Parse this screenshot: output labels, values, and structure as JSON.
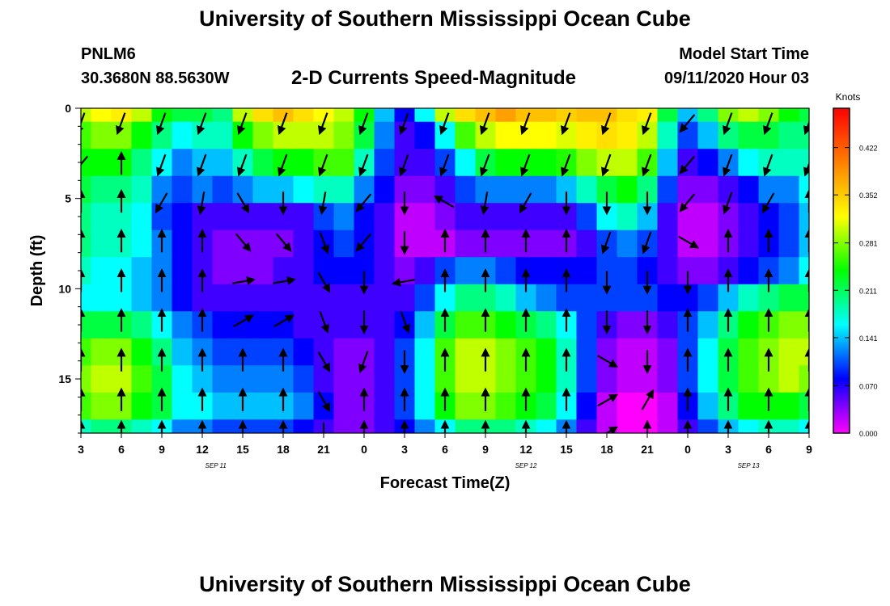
{
  "header": {
    "title": "University of Southern Mississippi Ocean Cube",
    "station_id": "PNLM6",
    "coordinates": "30.3680N 88.5630W",
    "subtitle": "2-D Currents Speed-Magnitude",
    "model_start_label": "Model Start Time",
    "model_start_value": "09/11/2020 Hour 03"
  },
  "footer": {
    "title": "University of Southern Mississippi Ocean Cube"
  },
  "chart_data": {
    "type": "heatmap",
    "xlabel": "Forecast Time(Z)",
    "ylabel": "Depth (ft)",
    "x_range_hours": [
      0,
      54
    ],
    "x_ticks": [
      {
        "hour": 0,
        "label": "3"
      },
      {
        "hour": 3,
        "label": "6"
      },
      {
        "hour": 6,
        "label": "9"
      },
      {
        "hour": 9,
        "label": "12"
      },
      {
        "hour": 12,
        "label": "15"
      },
      {
        "hour": 15,
        "label": "18"
      },
      {
        "hour": 18,
        "label": "21"
      },
      {
        "hour": 21,
        "label": "0"
      },
      {
        "hour": 24,
        "label": "3"
      },
      {
        "hour": 27,
        "label": "6"
      },
      {
        "hour": 30,
        "label": "9"
      },
      {
        "hour": 33,
        "label": "12"
      },
      {
        "hour": 36,
        "label": "15"
      },
      {
        "hour": 39,
        "label": "18"
      },
      {
        "hour": 42,
        "label": "21"
      },
      {
        "hour": 45,
        "label": "0"
      },
      {
        "hour": 48,
        "label": "3"
      },
      {
        "hour": 51,
        "label": "6"
      },
      {
        "hour": 54,
        "label": "9"
      }
    ],
    "date_labels": [
      {
        "hour": 10,
        "label": "SEP 11"
      },
      {
        "hour": 33,
        "label": "SEP 12"
      },
      {
        "hour": 49.5,
        "label": "SEP 13"
      }
    ],
    "y_range": [
      0,
      18
    ],
    "y_ticks": [
      0,
      5,
      10,
      15
    ],
    "y_inverted": true,
    "colorbar": {
      "title": "Knots",
      "range": [
        0,
        0.48
      ],
      "ticks": [
        0.0,
        0.07,
        0.141,
        0.211,
        0.281,
        0.352,
        0.422
      ],
      "tick_labels": [
        "0.000",
        "0.070",
        "0.141",
        "0.211",
        "0.281",
        "0.352",
        "0.422"
      ],
      "colors": [
        "#ff00ff",
        "#8000ff",
        "#0000ff",
        "#0080ff",
        "#00ffff",
        "#00ff80",
        "#00ff00",
        "#80ff00",
        "#ffff00",
        "#ffc000",
        "#ff8000",
        "#ff4000",
        "#ff0000"
      ]
    },
    "speed_grid": {
      "x_hours": [
        0,
        1.5,
        3,
        4.5,
        6,
        7.5,
        9,
        10.5,
        12,
        13.5,
        15,
        16.5,
        18,
        19.5,
        21,
        22.5,
        24,
        25.5,
        27,
        28.5,
        30,
        31.5,
        33,
        34.5,
        36,
        37.5,
        39,
        40.5,
        42,
        43.5,
        45,
        46.5,
        48,
        49.5,
        51,
        52.5,
        54
      ],
      "depths": [
        0,
        1.5,
        3,
        4.5,
        6,
        7.5,
        9,
        10.5,
        12,
        13.5,
        15,
        16.5,
        18
      ],
      "values_knots": [
        [
          0.3,
          0.32,
          0.33,
          0.3,
          0.24,
          0.22,
          0.22,
          0.2,
          0.3,
          0.34,
          0.36,
          0.34,
          0.32,
          0.3,
          0.24,
          0.14,
          0.08,
          0.16,
          0.3,
          0.34,
          0.36,
          0.38,
          0.36,
          0.36,
          0.35,
          0.36,
          0.36,
          0.34,
          0.33,
          0.22,
          0.14,
          0.2,
          0.28,
          0.3,
          0.28,
          0.24,
          0.22
        ],
        [
          0.26,
          0.28,
          0.28,
          0.24,
          0.2,
          0.16,
          0.18,
          0.18,
          0.24,
          0.28,
          0.3,
          0.3,
          0.3,
          0.28,
          0.22,
          0.12,
          0.06,
          0.08,
          0.16,
          0.26,
          0.3,
          0.32,
          0.32,
          0.32,
          0.31,
          0.33,
          0.34,
          0.33,
          0.3,
          0.18,
          0.1,
          0.14,
          0.2,
          0.22,
          0.22,
          0.2,
          0.2
        ],
        [
          0.24,
          0.24,
          0.24,
          0.2,
          0.16,
          0.12,
          0.14,
          0.14,
          0.18,
          0.22,
          0.24,
          0.24,
          0.26,
          0.26,
          0.18,
          0.1,
          0.06,
          0.06,
          0.1,
          0.16,
          0.22,
          0.24,
          0.24,
          0.24,
          0.25,
          0.28,
          0.3,
          0.3,
          0.26,
          0.14,
          0.06,
          0.08,
          0.12,
          0.16,
          0.18,
          0.18,
          0.18
        ],
        [
          0.22,
          0.2,
          0.2,
          0.18,
          0.12,
          0.1,
          0.12,
          0.1,
          0.12,
          0.14,
          0.14,
          0.16,
          0.18,
          0.18,
          0.12,
          0.08,
          0.04,
          0.04,
          0.06,
          0.1,
          0.12,
          0.12,
          0.12,
          0.12,
          0.14,
          0.18,
          0.22,
          0.24,
          0.2,
          0.1,
          0.04,
          0.04,
          0.06,
          0.08,
          0.12,
          0.12,
          0.16
        ],
        [
          0.2,
          0.18,
          0.18,
          0.16,
          0.1,
          0.08,
          0.06,
          0.06,
          0.06,
          0.06,
          0.06,
          0.06,
          0.1,
          0.12,
          0.08,
          0.06,
          0.02,
          0.02,
          0.04,
          0.06,
          0.06,
          0.06,
          0.06,
          0.06,
          0.06,
          0.1,
          0.16,
          0.18,
          0.14,
          0.06,
          0.02,
          0.02,
          0.04,
          0.06,
          0.08,
          0.1,
          0.14
        ],
        [
          0.2,
          0.18,
          0.18,
          0.16,
          0.12,
          0.08,
          0.06,
          0.04,
          0.04,
          0.04,
          0.04,
          0.06,
          0.08,
          0.1,
          0.08,
          0.06,
          0.02,
          0.02,
          0.02,
          0.04,
          0.04,
          0.04,
          0.04,
          0.04,
          0.04,
          0.06,
          0.1,
          0.12,
          0.1,
          0.06,
          0.02,
          0.02,
          0.04,
          0.06,
          0.08,
          0.1,
          0.14
        ],
        [
          0.18,
          0.16,
          0.16,
          0.14,
          0.12,
          0.08,
          0.06,
          0.04,
          0.04,
          0.04,
          0.06,
          0.06,
          0.08,
          0.08,
          0.08,
          0.06,
          0.04,
          0.06,
          0.1,
          0.12,
          0.12,
          0.1,
          0.08,
          0.08,
          0.08,
          0.08,
          0.1,
          0.1,
          0.08,
          0.06,
          0.04,
          0.04,
          0.06,
          0.08,
          0.1,
          0.12,
          0.16
        ],
        [
          0.16,
          0.16,
          0.16,
          0.14,
          0.12,
          0.08,
          0.06,
          0.06,
          0.06,
          0.06,
          0.06,
          0.06,
          0.06,
          0.06,
          0.06,
          0.06,
          0.06,
          0.1,
          0.16,
          0.2,
          0.2,
          0.18,
          0.14,
          0.12,
          0.1,
          0.1,
          0.1,
          0.1,
          0.1,
          0.08,
          0.08,
          0.1,
          0.14,
          0.18,
          0.2,
          0.22,
          0.22
        ],
        [
          0.22,
          0.22,
          0.22,
          0.2,
          0.16,
          0.12,
          0.1,
          0.08,
          0.08,
          0.08,
          0.08,
          0.06,
          0.06,
          0.06,
          0.06,
          0.06,
          0.08,
          0.14,
          0.22,
          0.26,
          0.26,
          0.24,
          0.22,
          0.2,
          0.16,
          0.1,
          0.06,
          0.04,
          0.04,
          0.06,
          0.1,
          0.14,
          0.2,
          0.24,
          0.26,
          0.28,
          0.28
        ],
        [
          0.26,
          0.28,
          0.28,
          0.24,
          0.2,
          0.14,
          0.12,
          0.1,
          0.1,
          0.1,
          0.1,
          0.08,
          0.06,
          0.04,
          0.04,
          0.06,
          0.1,
          0.16,
          0.26,
          0.3,
          0.3,
          0.28,
          0.26,
          0.24,
          0.18,
          0.1,
          0.04,
          0.02,
          0.02,
          0.04,
          0.1,
          0.16,
          0.22,
          0.26,
          0.28,
          0.3,
          0.3
        ],
        [
          0.28,
          0.3,
          0.3,
          0.26,
          0.22,
          0.16,
          0.14,
          0.12,
          0.12,
          0.12,
          0.12,
          0.1,
          0.06,
          0.04,
          0.04,
          0.06,
          0.1,
          0.16,
          0.26,
          0.3,
          0.3,
          0.28,
          0.26,
          0.24,
          0.18,
          0.1,
          0.04,
          0.02,
          0.02,
          0.04,
          0.1,
          0.16,
          0.22,
          0.26,
          0.28,
          0.3,
          0.28
        ],
        [
          0.26,
          0.28,
          0.28,
          0.24,
          0.22,
          0.16,
          0.16,
          0.14,
          0.14,
          0.14,
          0.14,
          0.12,
          0.08,
          0.04,
          0.04,
          0.06,
          0.1,
          0.16,
          0.24,
          0.28,
          0.28,
          0.26,
          0.24,
          0.22,
          0.16,
          0.08,
          0.02,
          0.0,
          0.0,
          0.02,
          0.08,
          0.14,
          0.2,
          0.24,
          0.24,
          0.24,
          0.22
        ],
        [
          0.18,
          0.2,
          0.2,
          0.18,
          0.16,
          0.12,
          0.12,
          0.1,
          0.1,
          0.1,
          0.1,
          0.08,
          0.06,
          0.04,
          0.04,
          0.06,
          0.08,
          0.12,
          0.16,
          0.2,
          0.2,
          0.2,
          0.18,
          0.16,
          0.12,
          0.06,
          0.02,
          0.0,
          0.0,
          0.02,
          0.06,
          0.1,
          0.14,
          0.16,
          0.18,
          0.18,
          0.16
        ]
      ]
    },
    "vectors": {
      "x_hours": [
        0,
        3,
        6,
        9,
        12,
        15,
        18,
        21,
        24,
        27,
        30,
        33,
        36,
        39,
        42,
        45,
        48,
        51,
        54
      ],
      "depths": [
        0.8,
        3.1,
        5.2,
        7.4,
        9.6,
        11.8,
        14.0,
        16.2,
        18.0
      ],
      "directions_deg": [
        [
          200,
          200,
          200,
          200,
          200,
          200,
          200,
          200,
          200,
          200,
          200,
          200,
          200,
          200,
          200,
          220,
          200,
          200,
          200
        ],
        [
          220,
          0,
          200,
          200,
          200,
          200,
          200,
          200,
          200,
          200,
          200,
          200,
          200,
          200,
          200,
          220,
          200,
          200,
          200
        ],
        [
          0,
          0,
          210,
          190,
          150,
          180,
          190,
          220,
          180,
          300,
          190,
          210,
          180,
          180,
          180,
          220,
          200,
          210,
          0
        ],
        [
          0,
          0,
          0,
          0,
          140,
          140,
          160,
          220,
          180,
          0,
          0,
          0,
          0,
          200,
          200,
          120,
          0,
          0,
          0
        ],
        [
          0,
          0,
          0,
          0,
          80,
          80,
          150,
          180,
          260,
          0,
          0,
          0,
          0,
          180,
          180,
          180,
          0,
          0,
          0
        ],
        [
          0,
          0,
          0,
          0,
          60,
          60,
          160,
          180,
          160,
          0,
          0,
          0,
          0,
          180,
          180,
          0,
          0,
          0,
          0
        ],
        [
          0,
          0,
          0,
          0,
          0,
          0,
          150,
          200,
          180,
          0,
          0,
          0,
          0,
          120,
          180,
          0,
          0,
          0,
          0
        ],
        [
          0,
          0,
          0,
          0,
          0,
          0,
          150,
          0,
          0,
          0,
          0,
          0,
          0,
          60,
          30,
          0,
          0,
          0,
          0
        ],
        [
          0,
          0,
          0,
          0,
          0,
          0,
          180,
          0,
          0,
          0,
          0,
          0,
          0,
          60,
          0,
          0,
          0,
          0,
          0
        ]
      ]
    }
  }
}
